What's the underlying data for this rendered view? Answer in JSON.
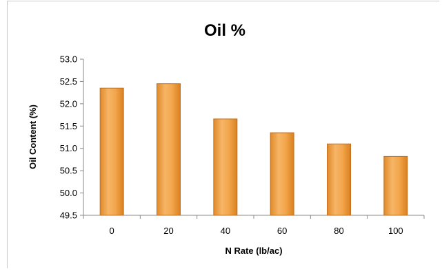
{
  "chart_data": {
    "type": "bar",
    "title": "Oil %",
    "xlabel": "N Rate (lb/ac)",
    "ylabel": "Oil Content (%)",
    "categories": [
      "0",
      "20",
      "40",
      "60",
      "80",
      "100"
    ],
    "values": [
      52.35,
      52.45,
      51.66,
      51.35,
      51.1,
      50.82
    ],
    "ylim": [
      49.5,
      53.0
    ],
    "yticks": [
      "49.5",
      "50.0",
      "50.5",
      "51.0",
      "51.5",
      "52.0",
      "52.5",
      "53.0"
    ],
    "grid": false,
    "legend": "none",
    "bar_color": "#F0A040",
    "bar_edge_color": "#C07020"
  }
}
